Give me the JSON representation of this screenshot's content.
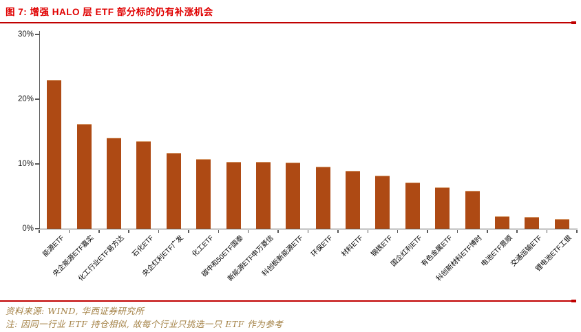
{
  "figure": {
    "title": "图 7: 增强 HALO 层 ETF 部分标的仍有补涨机会",
    "source": "资料来源: WIND, 华西证券研究所",
    "note": "注: 因同一行业 ETF 持仓相似, 故每个行业只挑选一只 ETF 作为参考"
  },
  "colors": {
    "title_red": "#E00000",
    "rule_red": "#C00000",
    "bar": "#AE4A14",
    "bar_top_highlight": "#D79A6A",
    "axis_gray": "#595959",
    "footer_gold": "#A38044"
  },
  "chart_data": {
    "type": "bar",
    "categories": [
      "能源ETF",
      "央企能源ETF嘉实",
      "化工行业ETF易方达",
      "石化ETF",
      "央企红利ETF广发",
      "化工ETF",
      "碳中和50ETF国泰",
      "新能源ETF申万菱信",
      "科创板新能源ETF",
      "环保ETF",
      "材料ETF",
      "钢铁ETF",
      "国企红利ETF",
      "有色金属ETF",
      "科创新材料ETF博时",
      "电池ETF景顺",
      "交通运输ETF",
      "锂电池ETF工银"
    ],
    "values": [
      23.0,
      16.2,
      14.0,
      13.5,
      11.7,
      10.7,
      10.3,
      10.3,
      10.2,
      9.6,
      8.9,
      8.2,
      7.1,
      6.4,
      5.9,
      1.9,
      1.8,
      1.5
    ],
    "title": "",
    "xlabel": "",
    "ylabel": "",
    "ylim": [
      0,
      30
    ],
    "ytick_values": [
      0,
      10,
      20,
      30
    ],
    "ytick_labels": [
      "0%",
      "10%",
      "20%",
      "30%"
    ],
    "grid": false,
    "legend_position": "none",
    "bar_color": "#AE4A14"
  }
}
